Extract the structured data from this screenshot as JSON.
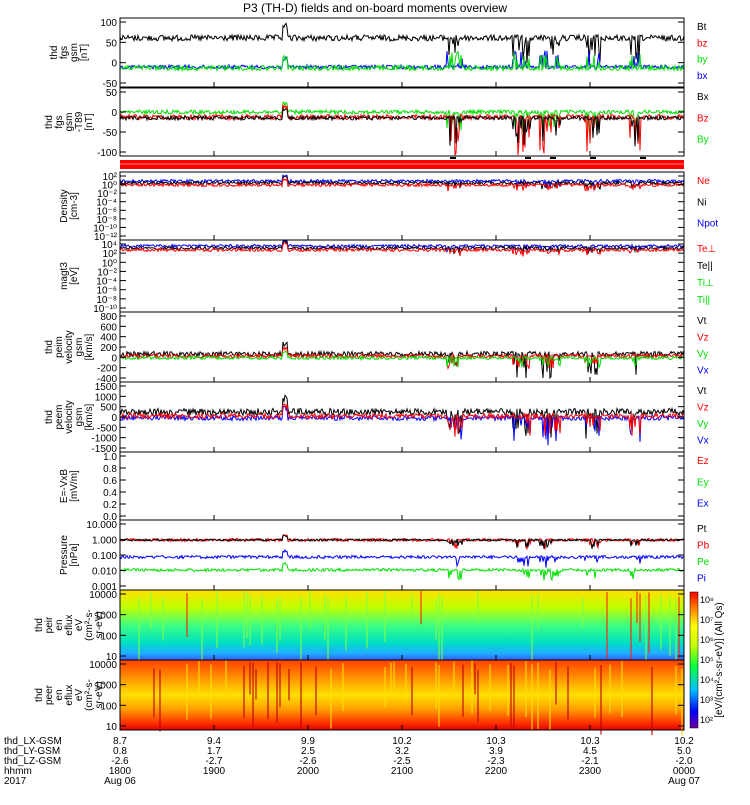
{
  "title": "P3 (TH-D) fields and on-board moments overview",
  "colors": {
    "black": "#000000",
    "red": "#ff0000",
    "green": "#00e000",
    "blue": "#0000ff"
  },
  "panels": [
    {
      "id": "fgs-gsm",
      "ylabel": [
        "thd",
        "fgs",
        "gsm",
        "[nT]"
      ],
      "ticks": [
        "100",
        "50",
        "0",
        "-50"
      ],
      "legend": [
        {
          "text": "Bt",
          "color": "black"
        },
        {
          "text": "bz",
          "color": "red"
        },
        {
          "text": "by",
          "color": "green"
        },
        {
          "text": "bx",
          "color": "blue"
        }
      ]
    },
    {
      "id": "fgs-gsm-t89",
      "ylabel": [
        "thd",
        "fgs",
        "gsm",
        "-T89",
        "[nT]"
      ],
      "ticks": [
        "50",
        "0",
        "-50",
        "-100"
      ],
      "legend": [
        {
          "text": "Bx",
          "color": "black"
        },
        {
          "text": "Bz",
          "color": "red"
        },
        {
          "text": "By",
          "color": "green"
        }
      ]
    },
    {
      "id": "density",
      "ylabel": [
        "Density",
        "[cm-3]"
      ],
      "ticks": [
        "10²",
        "10⁰",
        "10⁻²",
        "10⁻⁴",
        "10⁻⁶",
        "10⁻⁸",
        "10⁻¹⁰",
        "10⁻¹²"
      ],
      "legend": [
        {
          "text": "Ne",
          "color": "red"
        },
        {
          "text": "Ni",
          "color": "black"
        },
        {
          "text": "Npot",
          "color": "blue"
        }
      ]
    },
    {
      "id": "temperature",
      "ylabel": [
        "magt3",
        "[eV]"
      ],
      "ticks": [
        "10⁴",
        "10²",
        "10⁰",
        "10⁻²",
        "10⁻⁴",
        "10⁻⁶",
        "10⁻⁸",
        "10⁻¹⁰"
      ],
      "legend": [
        {
          "text": "Te⊥",
          "color": "red"
        },
        {
          "text": "Te||",
          "color": "black"
        },
        {
          "text": "Ti⊥",
          "color": "green"
        },
        {
          "text": "Ti||",
          "color": "green"
        }
      ]
    },
    {
      "id": "peim-velocity",
      "ylabel": [
        "thd",
        "peim",
        "velocity",
        "gsm",
        "[km/s]"
      ],
      "ticks": [
        "800",
        "600",
        "400",
        "200",
        "0",
        "-200",
        "-400"
      ],
      "legend": [
        {
          "text": "Vt",
          "color": "black"
        },
        {
          "text": "Vz",
          "color": "red"
        },
        {
          "text": "Vy",
          "color": "green"
        },
        {
          "text": "Vx",
          "color": "blue"
        }
      ]
    },
    {
      "id": "peem-velocity",
      "ylabel": [
        "thd",
        "peem",
        "velocity",
        "gsm",
        "[km/s]"
      ],
      "ticks": [
        "1500",
        "1000",
        "500",
        "0",
        "-500",
        "-1000",
        "-1500"
      ],
      "legend": [
        {
          "text": "Vt",
          "color": "black"
        },
        {
          "text": "Vz",
          "color": "red"
        },
        {
          "text": "Vy",
          "color": "green"
        },
        {
          "text": "Vx",
          "color": "blue"
        }
      ]
    },
    {
      "id": "efield",
      "ylabel": [
        "E=-VxB",
        "[mV/m]"
      ],
      "ticks": [
        "1.0",
        "0.8",
        "0.6",
        "0.4",
        "0.2",
        "0.0"
      ],
      "legend": [
        {
          "text": "Ez",
          "color": "red"
        },
        {
          "text": "Ey",
          "color": "green"
        },
        {
          "text": "Ex",
          "color": "blue"
        }
      ]
    },
    {
      "id": "pressure",
      "ylabel": [
        "Pressure",
        "[nPa]"
      ],
      "ticks": [
        "10.000",
        "1.000",
        "0.100",
        "0.010",
        "0.001"
      ],
      "legend": [
        {
          "text": "Pt",
          "color": "black"
        },
        {
          "text": "Pb",
          "color": "red"
        },
        {
          "text": "Pe",
          "color": "green"
        },
        {
          "text": "Pi",
          "color": "blue"
        }
      ]
    },
    {
      "id": "peir-spec",
      "ylabel": [
        "thd",
        "peir",
        "en",
        "eflux",
        "eV",
        "(cm²-s-",
        "sr-eV)"
      ],
      "ticks": [
        "10000",
        "1000",
        "100",
        "10"
      ],
      "legend": []
    },
    {
      "id": "peer-spec",
      "ylabel": [
        "thd",
        "peer",
        "en",
        "eflux",
        "eV",
        "(cm²-s-",
        "sr-eV)"
      ],
      "ticks": [
        "10000",
        "1000",
        "100",
        "10"
      ],
      "legend": []
    }
  ],
  "colorbar": {
    "ticks": [
      "10⁸",
      "10⁷",
      "10⁶",
      "10⁵",
      "10⁴",
      "10³",
      "10²"
    ],
    "label": "[eV/(cm²-s-sr-eV)] (All Qs)"
  },
  "bottom_axis": {
    "row_labels": [
      "thd_LX-GSM",
      "thd_LY-GSM",
      "thd_LZ-GSM",
      "hhmm",
      "2017"
    ],
    "columns": [
      [
        "8.7",
        "0.8",
        "-2.6",
        "1800",
        "Aug 06"
      ],
      [
        "9.4",
        "1.7",
        "-2.7",
        "1900",
        ""
      ],
      [
        "9.9",
        "2.5",
        "-2.6",
        "2000",
        ""
      ],
      [
        "10.2",
        "3.2",
        "-2.5",
        "2100",
        ""
      ],
      [
        "10.3",
        "3.9",
        "-2.3",
        "2200",
        ""
      ],
      [
        "10.3",
        "4.5",
        "-2.1",
        "2300",
        ""
      ],
      [
        "10.2",
        "5.0",
        "-2.0",
        "0000",
        "Aug 07"
      ]
    ]
  },
  "chart_data": {
    "type": "line",
    "title": "P3 (TH-D) fields and on-board moments overview",
    "x": [
      "1800",
      "1900",
      "2000",
      "2100",
      "2200",
      "2300",
      "0000"
    ],
    "xlabel": "hhmm",
    "series": [
      {
        "name": "Bt",
        "values": [
          68,
          58,
          52,
          50,
          48,
          52,
          50
        ]
      },
      {
        "name": "bz",
        "values": [
          50,
          45,
          40,
          40,
          35,
          40,
          38
        ]
      },
      {
        "name": "by",
        "values": [
          -5,
          -8,
          -10,
          -12,
          -10,
          -8,
          -10
        ]
      },
      {
        "name": "bx",
        "values": [
          -2,
          -4,
          -5,
          -6,
          -8,
          -6,
          -6
        ]
      }
    ],
    "ylim": [
      -50,
      100
    ]
  }
}
